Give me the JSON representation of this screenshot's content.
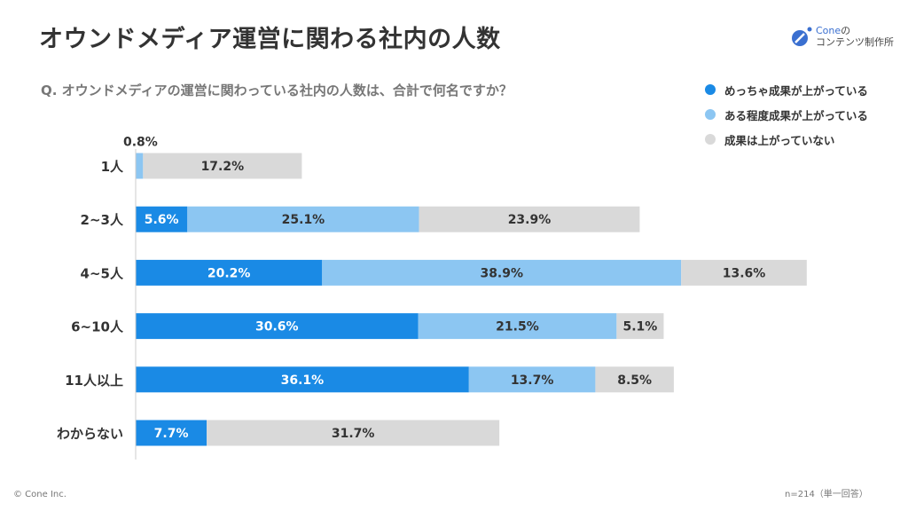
{
  "title": "オウンドメディア運営に関わる社内の人数",
  "question": "Q.  オウンドメディアの運営に関わっている社内の人数は、合計で何名ですか？",
  "logo": {
    "line1": "Cone",
    "line1_suffix": "の",
    "line2": "コンテンツ制作所"
  },
  "footer": {
    "copyright": "© Cone Inc.",
    "sample": "n=214（単一回答）"
  },
  "chart_data": {
    "type": "bar",
    "orientation": "horizontal",
    "stacked": true,
    "categories": [
      "1人",
      "2~3人",
      "4~5人",
      "6~10人",
      "11人以上",
      "わからない"
    ],
    "series": [
      {
        "name": "めっちゃ成果が上がっている",
        "color": "#1a8ae5",
        "values": [
          0,
          5.6,
          20.2,
          30.6,
          36.1,
          7.7
        ]
      },
      {
        "name": "ある程度成果が上がっている",
        "color": "#8cc6f2",
        "values": [
          0.8,
          25.1,
          38.9,
          21.5,
          13.7,
          0
        ]
      },
      {
        "name": "成果は上がっていない",
        "color": "#d9d9d9",
        "values": [
          17.2,
          23.9,
          13.6,
          5.1,
          8.5,
          31.7
        ]
      }
    ],
    "legend_position": "top-right",
    "grid": false
  }
}
